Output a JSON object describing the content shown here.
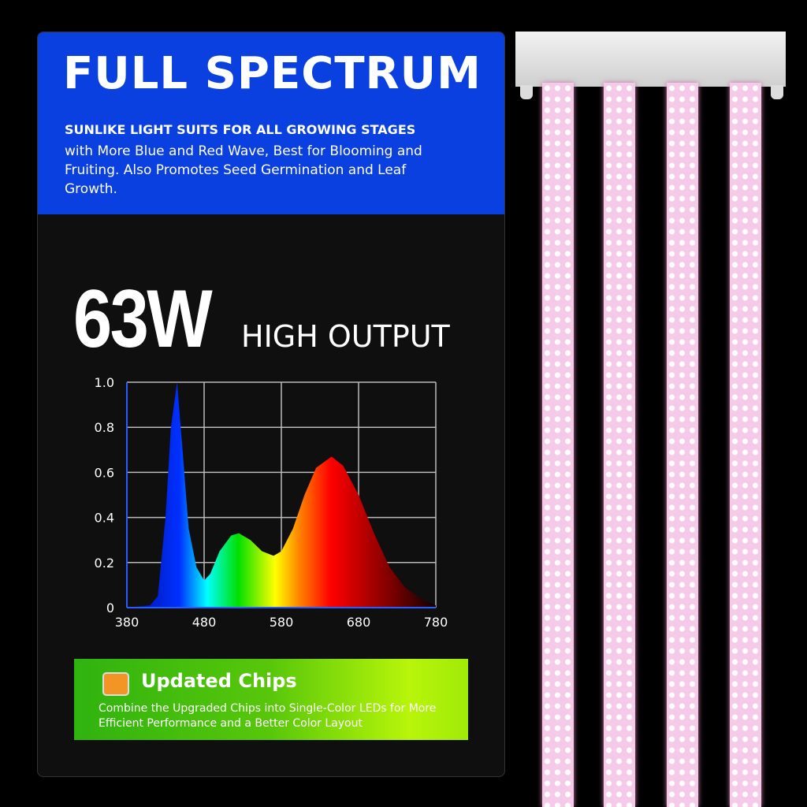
{
  "header": {
    "title": "FULL SPECTRUM",
    "subtitle": "SUNLIKE LIGHT SUITS FOR ALL GROWING STAGES",
    "description": "with More Blue and Red Wave, Best for Blooming and Fruiting. Also Promotes Seed Germination and Leaf Growth.",
    "color": "#0a3fe0"
  },
  "power": {
    "value": "63W",
    "label": "HIGH OUTPUT"
  },
  "chips": {
    "title": "Updated Chips",
    "description": "Combine the Upgraded Chips into Single-Color LEDs for More Efficient Performance and a Better Color Layout",
    "icon": "chip-icon"
  },
  "chart_data": {
    "type": "area",
    "x_ticks": [
      "380",
      "480",
      "580",
      "680",
      "780"
    ],
    "y_ticks": [
      "0",
      "0.2",
      "0.4",
      "0.6",
      "0.8",
      "1.0"
    ],
    "xlim": [
      380,
      780
    ],
    "ylim": [
      0,
      1.0
    ],
    "grid": true,
    "x": [
      380,
      410,
      420,
      430,
      437,
      445,
      452,
      460,
      470,
      480,
      488,
      500,
      515,
      525,
      540,
      555,
      570,
      580,
      595,
      610,
      625,
      645,
      660,
      680,
      700,
      720,
      740,
      760,
      780
    ],
    "y": [
      0,
      0.01,
      0.05,
      0.4,
      0.8,
      1.0,
      0.7,
      0.35,
      0.18,
      0.12,
      0.15,
      0.25,
      0.32,
      0.33,
      0.3,
      0.25,
      0.23,
      0.25,
      0.35,
      0.5,
      0.62,
      0.67,
      0.63,
      0.5,
      0.33,
      0.18,
      0.09,
      0.04,
      0.01
    ]
  }
}
